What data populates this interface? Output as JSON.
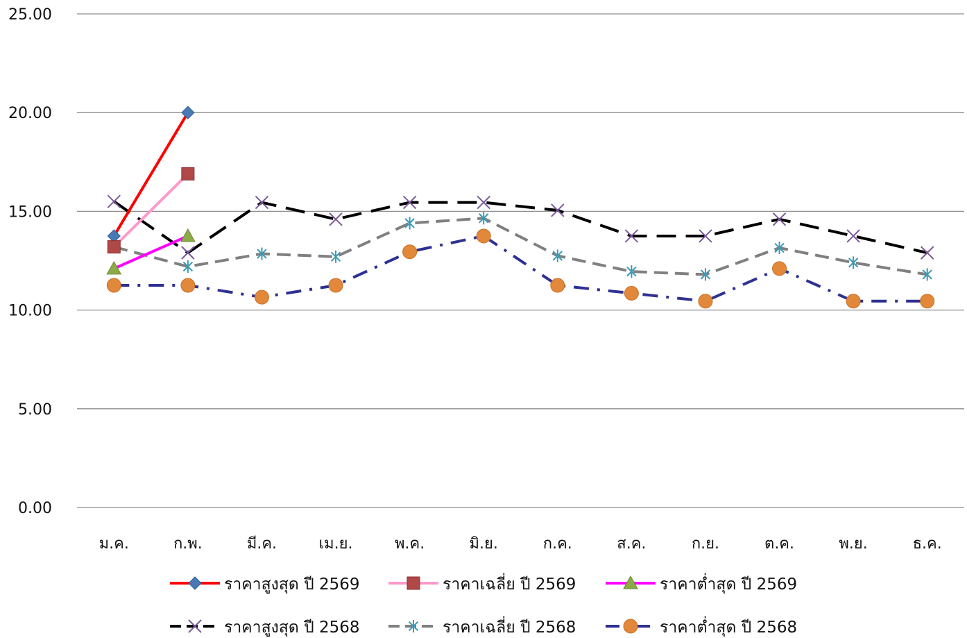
{
  "chart_data": {
    "type": "line",
    "title": "",
    "xlabel": "",
    "ylabel": "",
    "ylim": [
      0,
      25
    ],
    "yticks": [
      0,
      5,
      10,
      15,
      20,
      25
    ],
    "ytick_labels": [
      "0.00",
      "5.00",
      "10.00",
      "15.00",
      "20.00",
      "25.00"
    ],
    "grid": "horizontal",
    "legend_position": "bottom",
    "categories": [
      "ม.ค.",
      "ก.พ.",
      "มี.ค.",
      "เม.ย.",
      "พ.ค.",
      "มิ.ย.",
      "ก.ค.",
      "ส.ค.",
      "ก.ย.",
      "ต.ค.",
      "พ.ย.",
      "ธ.ค."
    ],
    "series": [
      {
        "name": "ราคาสูงสุด ปี 2569",
        "values": [
          13.75,
          20.0,
          null,
          null,
          null,
          null,
          null,
          null,
          null,
          null,
          null,
          null
        ],
        "color": "#ff0000",
        "dash": "solid",
        "marker": "diamond",
        "marker_color": "#4a7ab5",
        "width": 4
      },
      {
        "name": "ราคาเฉลี่ย ปี 2569",
        "values": [
          13.2,
          16.9,
          null,
          null,
          null,
          null,
          null,
          null,
          null,
          null,
          null,
          null
        ],
        "color": "#ff99cc",
        "dash": "solid",
        "marker": "square",
        "marker_color": "#b04848",
        "width": 4
      },
      {
        "name": "ราคาต่ำสุด ปี 2569",
        "values": [
          12.1,
          13.75,
          null,
          null,
          null,
          null,
          null,
          null,
          null,
          null,
          null,
          null
        ],
        "color": "#ff00ff",
        "dash": "solid",
        "marker": "triangle",
        "marker_color": "#8aab45",
        "width": 4
      },
      {
        "name": "ราคาสูงสุด ปี 2568",
        "values": [
          15.5,
          12.9,
          15.45,
          14.6,
          15.45,
          15.45,
          15.05,
          13.75,
          13.75,
          14.6,
          13.75,
          12.9
        ],
        "color": "#000000",
        "dash": "long",
        "marker": "x",
        "marker_color": "#7a5a9a",
        "width": 4
      },
      {
        "name": "ราคาเฉลี่ย ปี 2568",
        "values": [
          13.2,
          12.2,
          12.85,
          12.7,
          14.4,
          14.65,
          12.75,
          11.95,
          11.8,
          13.15,
          12.4,
          11.8
        ],
        "color": "#808080",
        "dash": "medium",
        "marker": "asterisk",
        "marker_color": "#3a9ab5",
        "width": 4
      },
      {
        "name": "ราคาต่ำสุด ปี 2568",
        "values": [
          11.25,
          11.25,
          10.65,
          11.25,
          12.95,
          13.75,
          11.25,
          10.85,
          10.45,
          12.1,
          10.45,
          10.45
        ],
        "color": "#2e3192",
        "dash": "dashdot",
        "marker": "circle",
        "marker_color": "#e2883a",
        "width": 4
      }
    ]
  }
}
